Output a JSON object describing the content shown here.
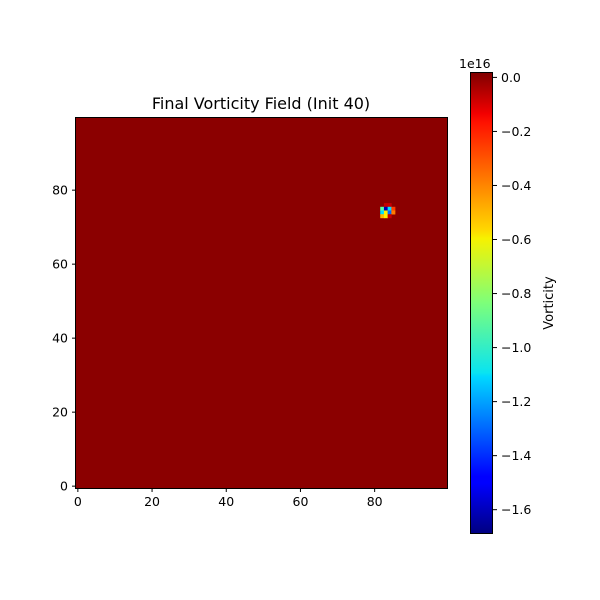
{
  "chart_data": {
    "type": "heatmap",
    "title": "Final Vorticity Field (Init 40)",
    "xlabel": "",
    "ylabel": "",
    "xlim": [
      -0.5,
      99.5
    ],
    "ylim": [
      -0.5,
      99.5
    ],
    "x_ticks": [
      0,
      20,
      40,
      60,
      80
    ],
    "y_ticks": [
      0,
      20,
      40,
      60,
      80
    ],
    "x_tick_labels": [
      "0",
      "20",
      "40",
      "60",
      "80"
    ],
    "y_tick_labels": [
      "0",
      "20",
      "40",
      "60",
      "80"
    ],
    "grid": false,
    "origin": "lower",
    "colormap": "jet",
    "background_value": 0.0,
    "cells": [
      {
        "x": 83,
        "y": 76,
        "value": -0.1
      },
      {
        "x": 84,
        "y": 76,
        "value": -0.1
      },
      {
        "x": 82,
        "y": 75,
        "value": -0.9
      },
      {
        "x": 83,
        "y": 75,
        "value": -1.6
      },
      {
        "x": 84,
        "y": 75,
        "value": -1.1
      },
      {
        "x": 85,
        "y": 75,
        "value": -0.3
      },
      {
        "x": 82,
        "y": 74,
        "value": -1.1
      },
      {
        "x": 83,
        "y": 74,
        "value": -0.6
      },
      {
        "x": 84,
        "y": 74,
        "value": -1.3
      },
      {
        "x": 85,
        "y": 74,
        "value": -0.4
      },
      {
        "x": 82,
        "y": 73,
        "value": -0.5
      },
      {
        "x": 83,
        "y": 73,
        "value": -0.6
      },
      {
        "x": 84,
        "y": 73,
        "value": -0.1
      }
    ],
    "colorbar": {
      "label": "Vorticity",
      "exponent_label": "1e16",
      "vmin": -1.69,
      "vmax": 0.02,
      "ticks": [
        0.0,
        -0.2,
        -0.4,
        -0.6,
        -0.8,
        -1.0,
        -1.2,
        -1.4,
        -1.6
      ],
      "tick_labels": [
        "0.0",
        "−0.2",
        "−0.4",
        "−0.6",
        "−0.8",
        "−1.0",
        "−1.2",
        "−1.4",
        "−1.6"
      ]
    }
  }
}
